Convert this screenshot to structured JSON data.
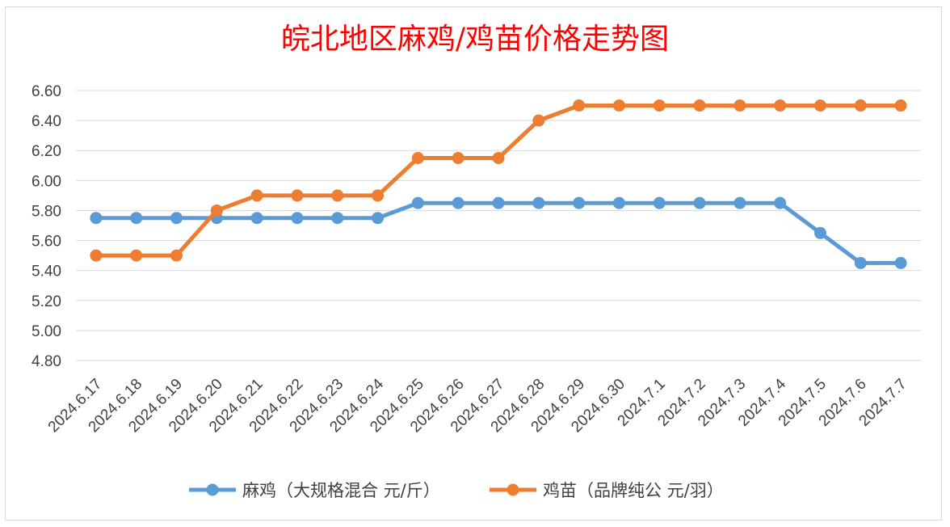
{
  "chart_data": {
    "type": "line",
    "title": "皖北地区麻鸡/鸡苗价格走势图",
    "categories": [
      "2024.6.17",
      "2024.6.18",
      "2024.6.19",
      "2024.6.20",
      "2024.6.21",
      "2024.6.22",
      "2024.6.23",
      "2024.6.24",
      "2024.6.25",
      "2024.6.26",
      "2024.6.27",
      "2024.6.28",
      "2024.6.29",
      "2024.6.30",
      "2024.7.1",
      "2024.7.2",
      "2024.7.3",
      "2024.7.4",
      "2024.7.5",
      "2024.7.6",
      "2024.7.7"
    ],
    "y_ticks": [
      "6.60",
      "6.40",
      "6.20",
      "6.00",
      "5.80",
      "5.60",
      "5.40",
      "5.20",
      "5.00",
      "4.80"
    ],
    "ylim": [
      4.8,
      6.6
    ],
    "grid": true,
    "legend_position": "bottom",
    "series": [
      {
        "name": "麻鸡（大规格混合 元/斤）",
        "color": "#5b9bd5",
        "values": [
          5.75,
          5.75,
          5.75,
          5.75,
          5.75,
          5.75,
          5.75,
          5.75,
          5.85,
          5.85,
          5.85,
          5.85,
          5.85,
          5.85,
          5.85,
          5.85,
          5.85,
          5.85,
          5.65,
          5.45,
          5.45
        ]
      },
      {
        "name": "鸡苗（品牌纯公 元/羽）",
        "color": "#ed7d31",
        "values": [
          5.5,
          5.5,
          5.5,
          5.8,
          5.9,
          5.9,
          5.9,
          5.9,
          6.15,
          6.15,
          6.15,
          6.4,
          6.5,
          6.5,
          6.5,
          6.5,
          6.5,
          6.5,
          6.5,
          6.5,
          6.5
        ]
      }
    ],
    "title_color": "#ff0000"
  }
}
